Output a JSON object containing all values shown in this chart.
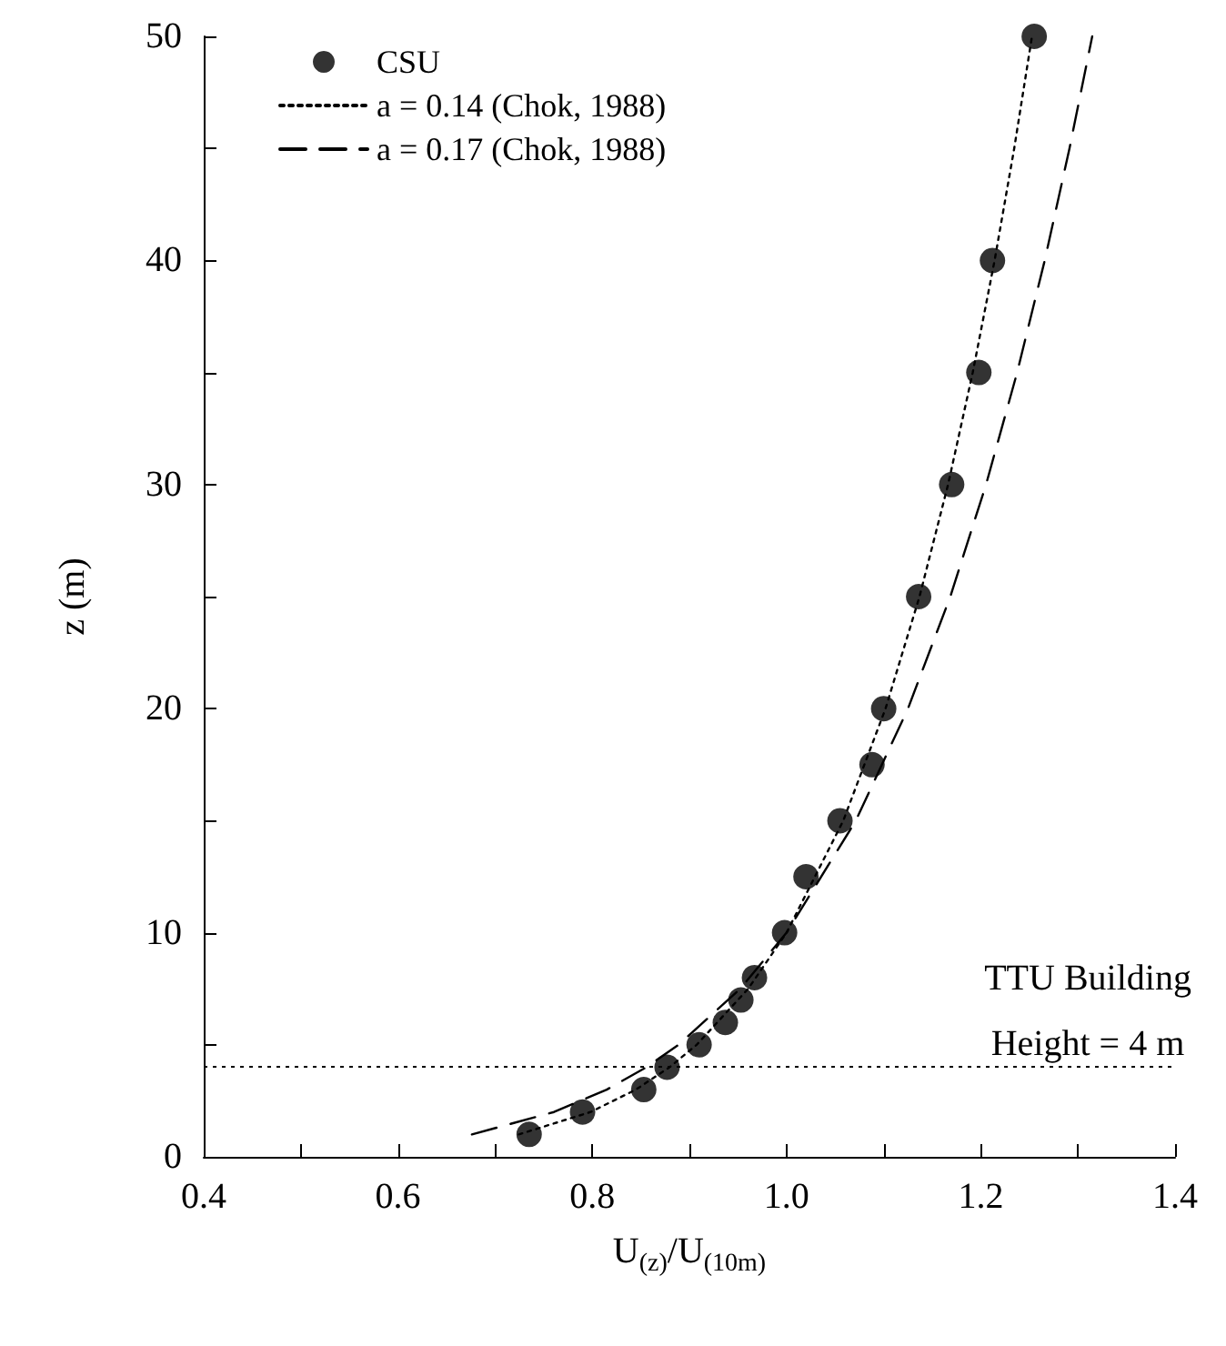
{
  "chart_data": {
    "type": "scatter",
    "xlabel": "U$_{(z)}$/U$_{(10m)}$",
    "ylabel": "z (m)",
    "xlim": [
      0.4,
      1.4
    ],
    "xticks": [
      0.4,
      0.6,
      0.8,
      {
        "value": 1,
        "label": "1.0"
      },
      1.2,
      1.4
    ],
    "ylim": [
      0,
      50
    ],
    "yticks": [
      0,
      10,
      20,
      30,
      40,
      50
    ],
    "grid": false,
    "legend": "top left",
    "series": [
      {
        "name": "CSU",
        "marker": "circle",
        "color": "#000000",
        "x": [
          0.735,
          0.79,
          0.853,
          0.877,
          0.91,
          0.937,
          0.953,
          0.967,
          0.998,
          1.02,
          1.055,
          1.088,
          1.1,
          1.136,
          1.17,
          1.198,
          1.212,
          1.255
        ],
        "values": [
          1,
          2,
          3,
          4,
          5,
          6,
          7,
          8,
          10,
          12.5,
          15,
          17.5,
          20,
          25,
          30,
          35,
          40,
          50
        ]
      },
      {
        "name": "a = 0.14 (Chok, 1988)",
        "type": "line",
        "marker": "none",
        "line_style": "dotted",
        "color": "#000000",
        "x": [
          0.7244,
          0.7983,
          0.8449,
          0.8796,
          0.9075,
          0.9605,
          1,
          1.0584,
          1.1019,
          1.1369,
          1.1663,
          1.1917,
          1.2142,
          1.2344,
          1.2527
        ],
        "values": [
          1,
          2,
          3,
          4,
          5,
          7.5,
          10,
          15,
          20,
          25,
          30,
          35,
          40,
          45,
          50
        ]
      },
      {
        "name": "a = 0.17 (Chok, 1988)",
        "type": "line",
        "marker": "none",
        "line_style": "dashed",
        "color": "#000000",
        "x": [
          0.6761,
          0.7606,
          0.8149,
          0.8558,
          0.8889,
          0.9523,
          1,
          1.0713,
          1.125,
          1.1686,
          1.2054,
          1.2374,
          1.2658,
          1.2913,
          1.3147
        ],
        "values": [
          1,
          2,
          3,
          4,
          5,
          7.5,
          10,
          15,
          20,
          25,
          30,
          35,
          40,
          45,
          50
        ]
      }
    ],
    "ref_lines": [
      {
        "axis": "y",
        "value": 4,
        "label": null,
        "line_style": "dotted",
        "color": "#000000"
      }
    ],
    "annotations": [
      "TTU Building",
      "Height = 4 m"
    ]
  }
}
